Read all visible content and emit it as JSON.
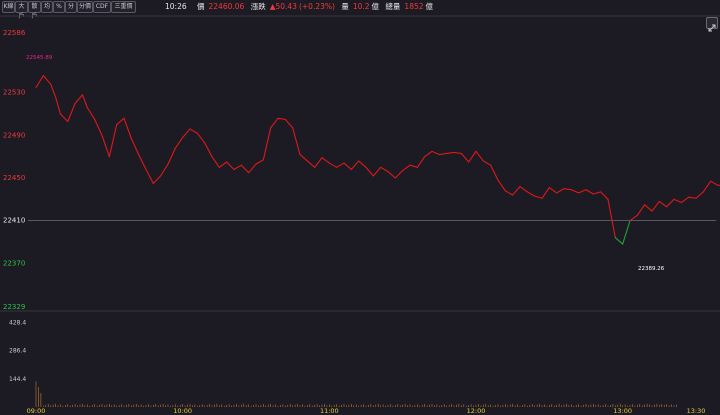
{
  "toolbar": {
    "buttons": [
      "K線",
      "大戶",
      "散戶",
      "均",
      "%",
      "分",
      "分價",
      "CDF",
      "三重價"
    ]
  },
  "quote": {
    "time": "10:26",
    "price_label": "價",
    "price": "22460.06",
    "change_label": "漲跌",
    "change_arrow": "▲",
    "change": "50.43",
    "change_pct": "(+0.23%)",
    "volume_label": "量",
    "volume": "10.2",
    "volume_unit": "億",
    "total_label": "總量",
    "total": "1852",
    "total_unit": "億"
  },
  "colors": {
    "up": "#e01818",
    "down": "#1fa33a",
    "background": "#1c1b24",
    "grid": "#2e2d38",
    "reference": "#6c6c78",
    "volume": "#c47a2c",
    "axis_time": "#e8d23a"
  },
  "icons": {
    "expand": "expand-arrows-icon"
  },
  "chart_data": {
    "type": "line",
    "reference_price": 22410,
    "y_ticks": [
      "22586",
      "22530",
      "22490",
      "22450",
      "22410",
      "22370",
      "22329"
    ],
    "y_range": [
      22329,
      22586
    ],
    "x_ticks": [
      "09:00",
      "10:00",
      "11:00",
      "12:00",
      "13:00",
      "13:30"
    ],
    "high_label": "22545.89",
    "low_label": "22389.26",
    "volume_ticks": [
      "428.4",
      "286.4",
      "144.4"
    ],
    "volume_range": [
      0,
      428.4
    ],
    "volume_spike": 428.4,
    "price_points": [
      [
        0,
        22535
      ],
      [
        3,
        22546
      ],
      [
        6,
        22538
      ],
      [
        8,
        22526
      ],
      [
        10,
        22510
      ],
      [
        13,
        22503
      ],
      [
        16,
        22520
      ],
      [
        19,
        22528
      ],
      [
        21,
        22516
      ],
      [
        24,
        22505
      ],
      [
        27,
        22490
      ],
      [
        30,
        22470
      ],
      [
        33,
        22500
      ],
      [
        36,
        22506
      ],
      [
        39,
        22487
      ],
      [
        42,
        22472
      ],
      [
        45,
        22458
      ],
      [
        48,
        22445
      ],
      [
        51,
        22452
      ],
      [
        54,
        22463
      ],
      [
        57,
        22478
      ],
      [
        60,
        22488
      ],
      [
        63,
        22496
      ],
      [
        66,
        22492
      ],
      [
        69,
        22483
      ],
      [
        72,
        22470
      ],
      [
        75,
        22460
      ],
      [
        78,
        22465
      ],
      [
        81,
        22458
      ],
      [
        84,
        22462
      ],
      [
        87,
        22455
      ],
      [
        90,
        22463
      ],
      [
        93,
        22467
      ],
      [
        96,
        22497
      ],
      [
        99,
        22506
      ],
      [
        102,
        22505
      ],
      [
        105,
        22497
      ],
      [
        108,
        22472
      ],
      [
        111,
        22466
      ],
      [
        114,
        22460
      ],
      [
        117,
        22469
      ],
      [
        120,
        22464
      ],
      [
        123,
        22460
      ],
      [
        126,
        22464
      ],
      [
        129,
        22458
      ],
      [
        132,
        22466
      ],
      [
        135,
        22460
      ],
      [
        138,
        22452
      ],
      [
        141,
        22460
      ],
      [
        144,
        22456
      ],
      [
        147,
        22450
      ],
      [
        150,
        22457
      ],
      [
        153,
        22462
      ],
      [
        156,
        22460
      ],
      [
        159,
        22470
      ],
      [
        162,
        22475
      ],
      [
        165,
        22472
      ],
      [
        168,
        22473
      ],
      [
        171,
        22474
      ],
      [
        174,
        22473
      ],
      [
        177,
        22465
      ],
      [
        180,
        22475
      ],
      [
        183,
        22466
      ],
      [
        186,
        22462
      ],
      [
        189,
        22448
      ],
      [
        192,
        22438
      ],
      [
        195,
        22434
      ],
      [
        198,
        22442
      ],
      [
        201,
        22437
      ],
      [
        204,
        22433
      ],
      [
        207,
        22431
      ],
      [
        210,
        22441
      ],
      [
        213,
        22436
      ],
      [
        216,
        22440
      ],
      [
        219,
        22439
      ],
      [
        222,
        22436
      ],
      [
        225,
        22439
      ],
      [
        228,
        22435
      ],
      [
        231,
        22437
      ],
      [
        234,
        22430
      ],
      [
        237,
        22394
      ],
      [
        240,
        22388
      ],
      [
        243,
        22410
      ],
      [
        246,
        22415
      ],
      [
        249,
        22425
      ],
      [
        252,
        22419
      ],
      [
        255,
        22428
      ],
      [
        258,
        22423
      ],
      [
        261,
        22430
      ],
      [
        264,
        22427
      ],
      [
        267,
        22432
      ],
      [
        270,
        22431
      ],
      [
        273,
        22437
      ],
      [
        276,
        22447
      ],
      [
        279,
        22443
      ],
      [
        282,
        22444
      ],
      [
        285,
        22442
      ],
      [
        288,
        22437
      ],
      [
        291,
        22427
      ],
      [
        294,
        22424
      ],
      [
        297,
        22428
      ],
      [
        300,
        22423
      ],
      [
        303,
        22420
      ],
      [
        306,
        22416
      ],
      [
        309,
        22418
      ],
      [
        312,
        22412
      ],
      [
        315,
        22409
      ],
      [
        318,
        22398
      ],
      [
        321,
        22392
      ],
      [
        324,
        22398
      ],
      [
        327,
        22386
      ],
      [
        330,
        22390
      ],
      [
        333,
        22382
      ],
      [
        336,
        22380
      ],
      [
        339,
        22389
      ],
      [
        342,
        22386
      ],
      [
        345,
        22390
      ],
      [
        348,
        22389
      ],
      [
        351,
        22390
      ],
      [
        354,
        22390
      ],
      [
        357,
        22390
      ],
      [
        360,
        22390
      ],
      [
        362,
        22420
      ],
      [
        363,
        22428
      ]
    ]
  }
}
